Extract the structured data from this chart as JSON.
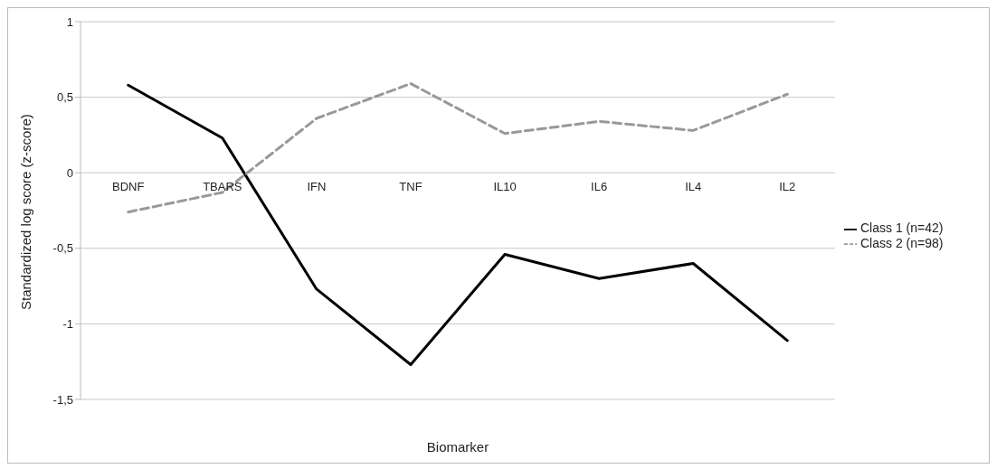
{
  "chart_data": {
    "type": "line",
    "xlabel": "Biomarker",
    "ylabel": "Standardized log score (z-score)",
    "categories": [
      "BDNF",
      "TBARS",
      "IFN",
      "TNF",
      "IL10",
      "IL6",
      "IL4",
      "IL2"
    ],
    "series": [
      {
        "name": "Class 1 (n=42)",
        "color": "#000000",
        "line_style": "solid",
        "values": [
          0.58,
          0.23,
          -0.77,
          -1.27,
          -0.54,
          -0.7,
          -0.6,
          -1.11
        ]
      },
      {
        "name": "Class 2 (n=98)",
        "color": "#999999",
        "line_style": "dashed",
        "values": [
          -0.26,
          -0.13,
          0.36,
          0.59,
          0.26,
          0.34,
          0.28,
          0.52
        ]
      }
    ],
    "ylim": [
      -1.5,
      1
    ],
    "yticks": [
      {
        "value": -1.5,
        "label": "-1,5"
      },
      -1,
      {
        "value": -0.5,
        "label": "-0,5"
      },
      0,
      {
        "value": 0.5,
        "label": "0,5"
      },
      1
    ],
    "grid": "y",
    "legend": "right",
    "marker": "none"
  }
}
